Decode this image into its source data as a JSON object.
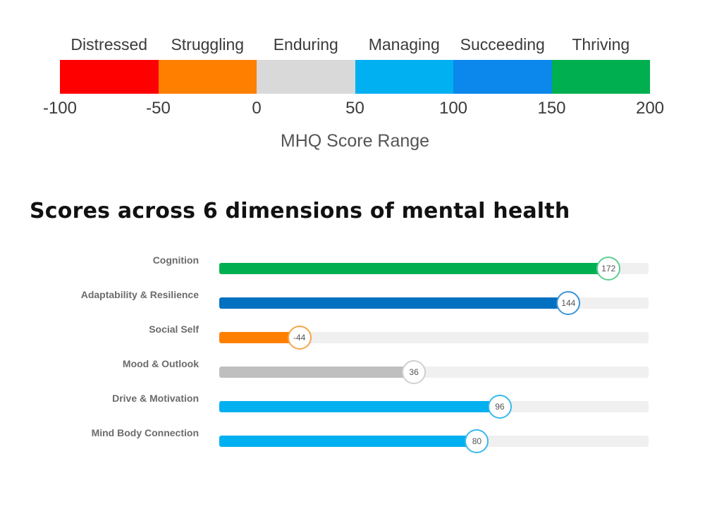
{
  "score_range": {
    "categories": [
      "Distressed",
      "Struggling",
      "Enduring",
      "Managing",
      "Succeeding",
      "Thriving"
    ],
    "colors": [
      "#ff0000",
      "#ff7f00",
      "#d9d9d9",
      "#00b0f0",
      "#0c87eb",
      "#00b050"
    ],
    "ticks": [
      "-100",
      "-50",
      "0",
      "50",
      "100",
      "150",
      "200"
    ],
    "title": "MHQ Score Range"
  },
  "section_title": "Scores across 6 dimensions of mental health",
  "chart_data": {
    "type": "bar",
    "orientation": "horizontal",
    "categories": [
      "Cognition",
      "Adaptability & Resilience",
      "Social Self",
      "Mood & Outlook",
      "Drive & Motivation",
      "Mind Body Connection"
    ],
    "values": [
      172,
      144,
      -44,
      36,
      96,
      80
    ],
    "colors": [
      "#00b050",
      "#0070c0",
      "#ff7f00",
      "#bfbfbf",
      "#00b0f0",
      "#00b0f0"
    ],
    "xlim": [
      -100,
      200
    ],
    "value_labels": [
      "172",
      "144",
      "-44",
      "36",
      "96",
      "80"
    ]
  }
}
